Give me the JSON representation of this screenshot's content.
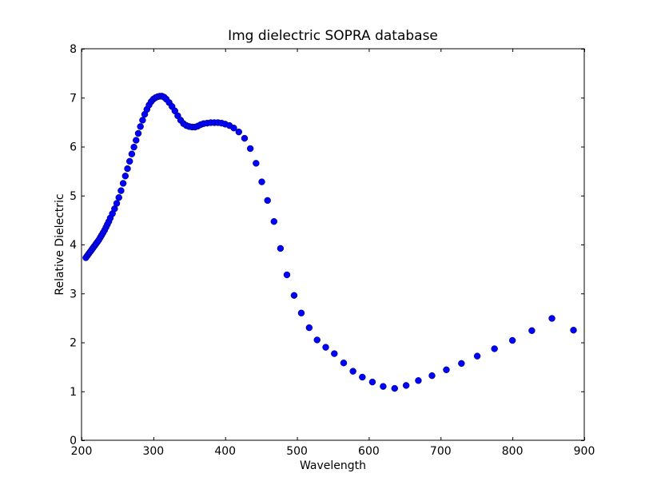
{
  "chart_data": {
    "type": "scatter",
    "title": "Img dielectric SOPRA database",
    "xlabel": "Wavelength",
    "ylabel": "Relative Dielectric",
    "xlim": [
      200,
      900
    ],
    "ylim": [
      0,
      8
    ],
    "xticks": [
      200,
      300,
      400,
      500,
      600,
      700,
      800,
      900
    ],
    "yticks": [
      0,
      1,
      2,
      3,
      4,
      5,
      6,
      7,
      8
    ],
    "grid": false,
    "legend": null,
    "marker_color": "#0000ff",
    "series": [
      {
        "x": [
          206,
          208,
          210,
          212,
          214,
          216,
          218,
          220,
          222,
          224,
          226,
          228,
          230,
          232,
          234,
          236,
          238,
          240,
          243,
          246,
          249,
          252,
          255,
          258,
          261,
          264,
          267,
          270,
          273,
          276,
          279,
          282,
          285,
          288,
          291,
          294,
          297,
          300,
          303,
          306,
          309,
          312,
          315,
          318,
          322,
          326,
          330,
          334,
          338,
          342,
          346,
          350,
          354,
          358,
          362,
          366,
          370,
          375,
          380,
          385,
          390,
          395,
          400,
          406,
          412,
          419,
          427,
          435,
          443,
          451,
          459,
          468,
          477,
          486,
          496,
          506,
          517,
          528,
          540,
          552,
          565,
          578,
          591,
          605,
          620,
          636,
          652,
          669,
          688,
          708,
          729,
          751,
          775,
          800,
          827,
          855,
          885
        ],
        "y": [
          3.73,
          3.77,
          3.81,
          3.85,
          3.89,
          3.93,
          3.97,
          4.01,
          4.05,
          4.09,
          4.14,
          4.19,
          4.24,
          4.29,
          4.35,
          4.41,
          4.47,
          4.54,
          4.63,
          4.73,
          4.84,
          4.96,
          5.1,
          5.25,
          5.4,
          5.55,
          5.7,
          5.85,
          5.99,
          6.13,
          6.27,
          6.41,
          6.54,
          6.66,
          6.76,
          6.85,
          6.92,
          6.97,
          7.0,
          7.02,
          7.03,
          7.03,
          7.01,
          6.97,
          6.9,
          6.82,
          6.73,
          6.63,
          6.54,
          6.47,
          6.43,
          6.41,
          6.4,
          6.4,
          6.42,
          6.45,
          6.47,
          6.48,
          6.49,
          6.49,
          6.49,
          6.48,
          6.46,
          6.43,
          6.38,
          6.3,
          6.17,
          5.96,
          5.66,
          5.28,
          4.9,
          4.47,
          3.92,
          3.38,
          2.96,
          2.6,
          2.3,
          2.05,
          1.9,
          1.77,
          1.58,
          1.41,
          1.29,
          1.19,
          1.1,
          1.06,
          1.12,
          1.22,
          1.32,
          1.44,
          1.57,
          1.72,
          1.87,
          2.04,
          2.24,
          2.49,
          2.25
        ]
      }
    ]
  }
}
